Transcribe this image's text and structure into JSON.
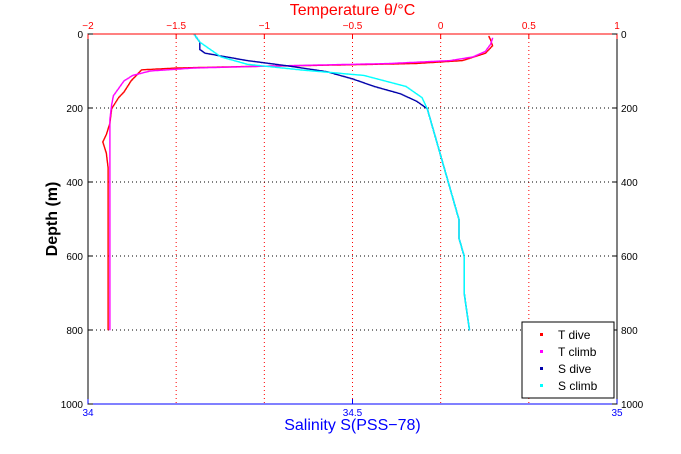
{
  "chart_data": {
    "type": "scatter",
    "top_axis": {
      "label": "Temperature θ/°C",
      "range": [
        -2,
        1
      ],
      "ticks": [
        -2,
        -1.5,
        -1,
        -0.5,
        0,
        0.5,
        1
      ],
      "tick_labels": [
        "−2",
        "−1.5",
        "−1",
        "−0.5",
        "0",
        "0.5",
        "1"
      ],
      "color": "#ff0000"
    },
    "bottom_axis": {
      "label": "Salinity S(PSS−78)",
      "range": [
        34,
        35
      ],
      "ticks": [
        34,
        34.5,
        35
      ],
      "tick_labels": [
        "34",
        "34.5",
        "35"
      ],
      "color": "#0000ff"
    },
    "y_axis": {
      "label": "Depth (m)",
      "range": [
        0,
        1000
      ],
      "reversed": true,
      "ticks": [
        0,
        200,
        400,
        600,
        800,
        1000
      ],
      "tick_labels": [
        "0",
        "200",
        "400",
        "600",
        "800",
        "1000"
      ]
    },
    "grid": "dotted",
    "legend_position": "bottom-right",
    "series": [
      {
        "name": "T dive",
        "axis": "top",
        "color": "#ff0000",
        "marker": "dot",
        "points": [
          [
            0.27,
            5
          ],
          [
            0.28,
            15
          ],
          [
            0.29,
            30
          ],
          [
            0.25,
            50
          ],
          [
            0.12,
            70
          ],
          [
            -0.15,
            78
          ],
          [
            -0.6,
            82
          ],
          [
            -1.1,
            86
          ],
          [
            -1.5,
            90
          ],
          [
            -1.7,
            95
          ],
          [
            -1.72,
            105
          ],
          [
            -1.74,
            115
          ],
          [
            -1.76,
            125
          ],
          [
            -1.78,
            140
          ],
          [
            -1.8,
            155
          ],
          [
            -1.83,
            170
          ],
          [
            -1.87,
            200
          ],
          [
            -1.88,
            240
          ],
          [
            -1.9,
            270
          ],
          [
            -1.92,
            290
          ],
          [
            -1.9,
            320
          ],
          [
            -1.89,
            360
          ],
          [
            -1.89,
            400
          ],
          [
            -1.89,
            450
          ],
          [
            -1.89,
            500
          ],
          [
            -1.89,
            600
          ],
          [
            -1.89,
            700
          ],
          [
            -1.89,
            800
          ]
        ]
      },
      {
        "name": "T climb",
        "axis": "top",
        "color": "#ff00ff",
        "marker": "dot",
        "points": [
          [
            0.29,
            10
          ],
          [
            0.28,
            25
          ],
          [
            0.25,
            45
          ],
          [
            0.18,
            60
          ],
          [
            0.05,
            70
          ],
          [
            -0.3,
            78
          ],
          [
            -0.9,
            84
          ],
          [
            -1.4,
            90
          ],
          [
            -1.65,
            98
          ],
          [
            -1.75,
            110
          ],
          [
            -1.8,
            125
          ],
          [
            -1.83,
            145
          ],
          [
            -1.86,
            165
          ],
          [
            -1.87,
            190
          ],
          [
            -1.88,
            230
          ],
          [
            -1.88,
            280
          ],
          [
            -1.88,
            350
          ],
          [
            -1.88,
            420
          ],
          [
            -1.88,
            500
          ],
          [
            -1.88,
            600
          ],
          [
            -1.88,
            700
          ],
          [
            -1.88,
            800
          ]
        ]
      },
      {
        "name": "S dive",
        "axis": "bottom",
        "color": "#0000aa",
        "marker": "dot",
        "points": [
          [
            34.2,
            0
          ],
          [
            34.21,
            20
          ],
          [
            34.21,
            40
          ],
          [
            34.22,
            50
          ],
          [
            34.3,
            70
          ],
          [
            34.38,
            85
          ],
          [
            34.45,
            100
          ],
          [
            34.5,
            120
          ],
          [
            34.54,
            140
          ],
          [
            34.59,
            160
          ],
          [
            34.62,
            180
          ],
          [
            34.64,
            200
          ],
          [
            34.65,
            250
          ],
          [
            34.66,
            300
          ],
          [
            34.67,
            350
          ],
          [
            34.68,
            400
          ],
          [
            34.69,
            450
          ],
          [
            34.7,
            500
          ],
          [
            34.7,
            550
          ],
          [
            34.71,
            600
          ],
          [
            34.71,
            700
          ],
          [
            34.72,
            800
          ]
        ]
      },
      {
        "name": "S climb",
        "axis": "bottom",
        "color": "#00ffff",
        "marker": "dot",
        "points": [
          [
            34.2,
            0
          ],
          [
            34.21,
            20
          ],
          [
            34.23,
            40
          ],
          [
            34.25,
            60
          ],
          [
            34.3,
            80
          ],
          [
            34.4,
            95
          ],
          [
            34.52,
            110
          ],
          [
            34.6,
            140
          ],
          [
            34.63,
            170
          ],
          [
            34.64,
            200
          ],
          [
            34.65,
            250
          ],
          [
            34.66,
            300
          ],
          [
            34.67,
            350
          ],
          [
            34.68,
            400
          ],
          [
            34.69,
            450
          ],
          [
            34.7,
            500
          ],
          [
            34.7,
            550
          ],
          [
            34.71,
            600
          ],
          [
            34.71,
            700
          ],
          [
            34.72,
            800
          ]
        ]
      }
    ]
  }
}
